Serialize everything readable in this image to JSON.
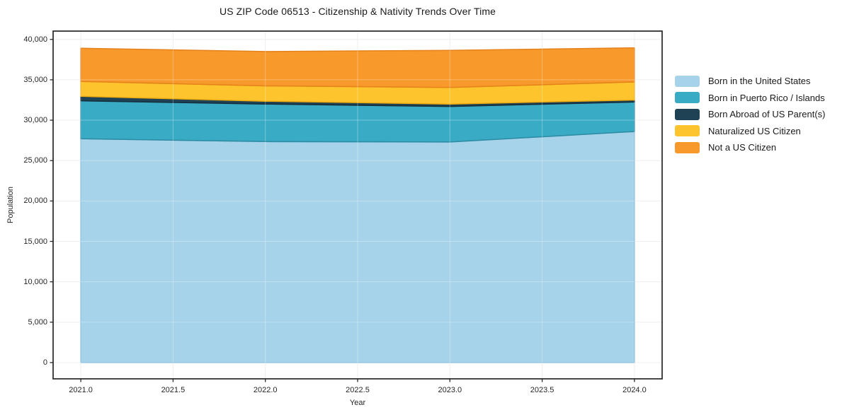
{
  "chart_data": {
    "type": "area",
    "stacked": true,
    "title": "US ZIP Code 06513 - Citizenship & Nativity Trends Over Time",
    "xlabel": "Year",
    "ylabel": "Population",
    "x": [
      2021,
      2022,
      2023,
      2024
    ],
    "series": [
      {
        "name": "Born in the United States",
        "fill": "#a6d3ea",
        "edge": "#7fb9da",
        "values": [
          27700,
          27350,
          27300,
          28600
        ]
      },
      {
        "name": "Born in Puerto Rico / Islands",
        "fill": "#3aabc4",
        "edge": "#2b8ba3",
        "values": [
          4700,
          4650,
          4400,
          3650
        ]
      },
      {
        "name": "Born Abroad of US Parent(s)",
        "fill": "#1f4254",
        "edge": "#152e3c",
        "values": [
          550,
          350,
          300,
          250
        ]
      },
      {
        "name": "Naturalized US Citizen",
        "fill": "#fdc42d",
        "edge": "#edab10",
        "values": [
          1850,
          1900,
          2050,
          2230
        ]
      },
      {
        "name": "Not a US Citizen",
        "fill": "#f8992b",
        "edge": "#e5821c",
        "values": [
          4100,
          4250,
          4600,
          4220
        ]
      }
    ],
    "xlim": [
      2020.85,
      2024.15
    ],
    "ylim": [
      -2012,
      41027
    ],
    "xticks": [
      2021.0,
      2021.5,
      2022.0,
      2022.5,
      2023.0,
      2023.5,
      2024.0
    ],
    "xtick_labels": [
      "2021.0",
      "2021.5",
      "2022.0",
      "2022.5",
      "2023.0",
      "2023.5",
      "2024.0"
    ],
    "yticks": [
      0,
      5000,
      10000,
      15000,
      20000,
      25000,
      30000,
      35000,
      40000
    ],
    "ytick_labels": [
      "0",
      "5,000",
      "10,000",
      "15,000",
      "20,000",
      "25,000",
      "30,000",
      "35,000",
      "40,000"
    ],
    "grid": true,
    "grid_color": "#e9e9e9",
    "grid_overlay_color": "rgba(255,255,255,0.30)",
    "frame_color": "#262626",
    "legend_position": "right"
  }
}
